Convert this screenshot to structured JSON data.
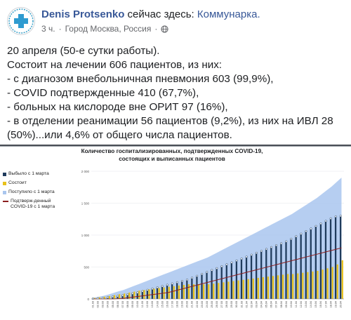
{
  "post": {
    "author_name": "Denis Protsenko",
    "action_text": " сейчас здесь: ",
    "location": "Коммунарка.",
    "time": "3 ч.",
    "separator": "·",
    "place": "Город Москва, Россия",
    "separator2": "·",
    "privacy_icon": "globe-icon",
    "lines": [
      "20 апреля (50-е сутки работы).",
      "Состоит на лечении 606 пациентов, из них:",
      "- с диагнозом внебольничная пневмония 603 (99,9%),",
      "- COVID подтвержденные 410 (67,7%),",
      "- больных на кислороде вне ОРИТ 97 (16%),",
      "- в отделении реанимации 56 пациентов (9,2%), из них на ИВЛ 28",
      "(50%)...или 4,6% от общего числа пациентов."
    ]
  },
  "colors": {
    "link": "#385898",
    "vypisano": "#1f3b5c",
    "sostoit": "#e8c11a",
    "postupilo": "#a9c6ee",
    "covid": "#8b1e1e"
  },
  "chart_data": {
    "type": "bar",
    "title": "Количество госпитализированных, подтвержденных COVID-19, состоящих и выписанных пациентов",
    "ylim": [
      0,
      2000
    ],
    "y_ticks": [
      "0",
      "500",
      "1 000",
      "1 500",
      "2 000"
    ],
    "legend_placement": "left",
    "series": [
      {
        "name": "Выбыло с 1 марта",
        "kind": "bar"
      },
      {
        "name": "Состоит",
        "kind": "bar"
      },
      {
        "name": "Поступило с 1 марта",
        "kind": "area"
      },
      {
        "name": "Подтверж-денный COVID-19 с 1 марта",
        "kind": "line"
      }
    ],
    "categories": [
      "01.03",
      "02.03",
      "03.03",
      "04.03",
      "05.03",
      "06.03",
      "07.03",
      "08.03",
      "09.03",
      "10.03",
      "11.03",
      "12.03",
      "13.03",
      "14.03",
      "15.03",
      "16.03",
      "17.03",
      "18.03",
      "19.03",
      "20.03",
      "21.03",
      "22.03",
      "23.03",
      "24.03",
      "25.03",
      "26.03",
      "27.03",
      "28.03",
      "29.03",
      "30.03",
      "31.03",
      "01.04",
      "02.04",
      "03.04",
      "04.04",
      "05.04",
      "06.04",
      "07.04",
      "08.04",
      "09.04",
      "10.04",
      "11.04",
      "12.04",
      "13.04",
      "14.04",
      "15.04",
      "16.04",
      "17.04",
      "18.04",
      "19.04",
      "20.04"
    ],
    "postupilo": [
      20,
      35,
      50,
      70,
      95,
      120,
      140,
      170,
      200,
      230,
      260,
      290,
      320,
      350,
      380,
      410,
      440,
      470,
      500,
      530,
      560,
      590,
      620,
      650,
      690,
      730,
      770,
      810,
      850,
      890,
      930,
      970,
      1010,
      1050,
      1090,
      1130,
      1170,
      1210,
      1250,
      1290,
      1330,
      1380,
      1430,
      1480,
      1530,
      1580,
      1640,
      1700,
      1760,
      1830,
      1900
    ],
    "vypisano": [
      5,
      10,
      15,
      25,
      35,
      45,
      55,
      70,
      85,
      100,
      120,
      140,
      160,
      180,
      200,
      220,
      240,
      260,
      280,
      300,
      330,
      360,
      390,
      420,
      450,
      480,
      510,
      540,
      570,
      600,
      630,
      660,
      690,
      720,
      750,
      780,
      810,
      840,
      870,
      900,
      940,
      980,
      1020,
      1060,
      1100,
      1140,
      1180,
      1220,
      1260,
      1290,
      1300
    ],
    "sostoit": [
      15,
      25,
      35,
      45,
      60,
      75,
      85,
      100,
      115,
      130,
      140,
      150,
      160,
      170,
      180,
      190,
      200,
      210,
      220,
      230,
      230,
      230,
      230,
      230,
      240,
      250,
      260,
      270,
      280,
      290,
      300,
      310,
      320,
      330,
      340,
      350,
      360,
      370,
      380,
      390,
      390,
      400,
      410,
      420,
      430,
      440,
      460,
      480,
      500,
      540,
      606
    ],
    "covid": [
      0,
      0,
      0,
      0,
      0,
      5,
      10,
      20,
      30,
      40,
      50,
      60,
      70,
      80,
      90,
      100,
      120,
      140,
      160,
      180,
      200,
      220,
      240,
      260,
      280,
      300,
      320,
      340,
      360,
      380,
      400,
      420,
      440,
      460,
      480,
      500,
      520,
      540,
      560,
      580,
      600,
      620,
      640,
      660,
      680,
      700,
      720,
      740,
      760,
      780,
      800
    ]
  }
}
